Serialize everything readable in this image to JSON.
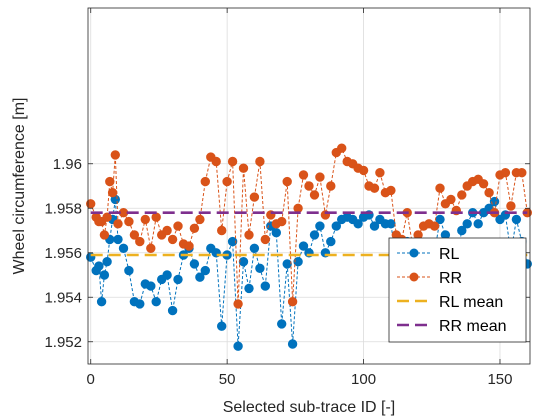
{
  "chart_data": {
    "type": "line",
    "title": "",
    "xlabel": "Selected sub-trace ID [-]",
    "ylabel": "Wheel circumference [m]",
    "xlim": [
      -1,
      161
    ],
    "ylim": [
      1.951,
      1.967
    ],
    "xticks": [
      0,
      50,
      100,
      150
    ],
    "yticks": [
      1.952,
      1.954,
      1.956,
      1.958,
      1.96
    ],
    "ytick_labels": [
      "1.952",
      "1.954",
      "1.956",
      "1.958",
      "1.96"
    ],
    "grid": true,
    "legend_position": "bottom-right",
    "series": [
      {
        "name": "RL",
        "color": "#0072bd",
        "style": "dashed-line-markers",
        "x": [
          0,
          2,
          3,
          4,
          5,
          6,
          7,
          8,
          9,
          10,
          12,
          14,
          16,
          18,
          20,
          22,
          24,
          26,
          28,
          30,
          32,
          34,
          36,
          38,
          40,
          42,
          44,
          46,
          48,
          50,
          52,
          54,
          56,
          58,
          60,
          62,
          64,
          66,
          68,
          70,
          72,
          74,
          76,
          78,
          80,
          82,
          84,
          86,
          88,
          90,
          92,
          94,
          96,
          98,
          100,
          102,
          104,
          106,
          108,
          110,
          112,
          114,
          116,
          118,
          120,
          122,
          124,
          126,
          128,
          130,
          132,
          134,
          136,
          138,
          140,
          142,
          144,
          146,
          148,
          150,
          152,
          154,
          156,
          158,
          160
        ],
        "y": [
          1.9558,
          1.9552,
          1.9554,
          1.9538,
          1.955,
          1.9556,
          1.9566,
          1.9575,
          1.9584,
          1.9566,
          1.9562,
          1.9552,
          1.9538,
          1.9537,
          1.9546,
          1.9545,
          1.9538,
          1.9548,
          1.955,
          1.9534,
          1.9548,
          1.9559,
          1.9562,
          1.9555,
          1.9549,
          1.9552,
          1.9562,
          1.956,
          1.9527,
          1.9559,
          1.9565,
          1.9518,
          1.9556,
          1.9544,
          1.9562,
          1.9553,
          1.9545,
          1.9572,
          1.9569,
          1.9528,
          1.9555,
          1.9519,
          1.9556,
          1.9563,
          1.956,
          1.9568,
          1.9572,
          1.956,
          1.9565,
          1.9572,
          1.9575,
          1.9576,
          1.9575,
          1.9573,
          1.9576,
          1.9577,
          1.9572,
          1.9575,
          1.9573,
          1.9573,
          1.9556,
          1.9553,
          1.9565,
          1.9548,
          1.9543,
          1.955,
          1.9555,
          1.956,
          1.9575,
          1.9568,
          1.9563,
          1.9557,
          1.957,
          1.9573,
          1.9578,
          1.9573,
          1.9578,
          1.958,
          1.9583,
          1.9575,
          1.9577,
          1.956,
          1.9575,
          1.9565,
          1.9555
        ]
      },
      {
        "name": "RR",
        "color": "#d95319",
        "style": "dashed-line-markers",
        "x": [
          0,
          2,
          3,
          4,
          5,
          6,
          7,
          8,
          9,
          10,
          12,
          14,
          16,
          18,
          20,
          22,
          24,
          26,
          28,
          30,
          32,
          34,
          36,
          38,
          40,
          42,
          44,
          46,
          48,
          50,
          52,
          54,
          56,
          58,
          60,
          62,
          64,
          66,
          68,
          70,
          72,
          74,
          76,
          78,
          80,
          82,
          84,
          86,
          88,
          90,
          92,
          94,
          96,
          98,
          100,
          102,
          104,
          106,
          108,
          110,
          112,
          114,
          116,
          118,
          120,
          122,
          124,
          126,
          128,
          130,
          132,
          134,
          136,
          138,
          140,
          142,
          144,
          146,
          148,
          150,
          152,
          154,
          156,
          158,
          160
        ],
        "y": [
          1.9582,
          1.9576,
          1.9574,
          1.9574,
          1.9568,
          1.9576,
          1.9592,
          1.9587,
          1.9604,
          1.9573,
          1.9578,
          1.9574,
          1.9568,
          1.9565,
          1.9575,
          1.9562,
          1.9576,
          1.9568,
          1.957,
          1.9566,
          1.9572,
          1.9564,
          1.9563,
          1.9571,
          1.9575,
          1.9592,
          1.9603,
          1.9601,
          1.957,
          1.9592,
          1.9601,
          1.9537,
          1.9598,
          1.9568,
          1.9585,
          1.9601,
          1.9566,
          1.9577,
          1.9573,
          1.9574,
          1.9592,
          1.9538,
          1.958,
          1.9595,
          1.959,
          1.9586,
          1.9594,
          1.9577,
          1.959,
          1.9605,
          1.9607,
          1.9601,
          1.96,
          1.9598,
          1.9597,
          1.959,
          1.9589,
          1.9596,
          1.9587,
          1.9588,
          1.9568,
          1.9566,
          1.9578,
          1.9563,
          1.9568,
          1.9572,
          1.9573,
          1.9572,
          1.9589,
          1.9582,
          1.9584,
          1.9579,
          1.9586,
          1.959,
          1.9592,
          1.9593,
          1.9591,
          1.9587,
          1.9578,
          1.9595,
          1.9596,
          1.9581,
          1.9596,
          1.9596,
          1.9578
        ]
      },
      {
        "name": "RL mean",
        "color": "#edb120",
        "style": "dashed-line",
        "x": [
          0,
          160
        ],
        "y": [
          1.9559,
          1.9559
        ]
      },
      {
        "name": "RR mean",
        "color": "#7e2f8e",
        "style": "dashed-line",
        "x": [
          0,
          160
        ],
        "y": [
          1.9578,
          1.9578
        ]
      }
    ]
  }
}
